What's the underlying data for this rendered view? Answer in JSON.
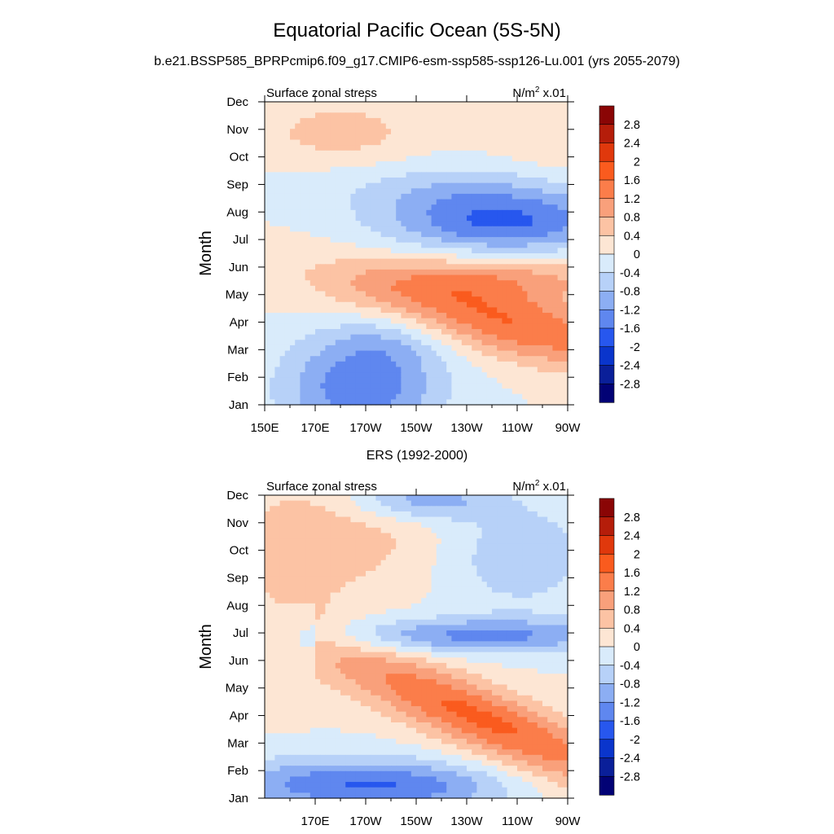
{
  "figure": {
    "title": "Equatorial Pacific Ocean (5S-5N)",
    "top_subtitle": "b.e21.BSSP585_BPRPcmip6.f09_g17.CMIP6-esm-ssp585-ssp126-Lu.001 (yrs 2055-2079)",
    "bottom_subtitle": "ERS (1992-2000)"
  },
  "colorbar": {
    "labels": [
      "2.8",
      "2.4",
      "2",
      "1.6",
      "1.2",
      "0.8",
      "0.4",
      "0",
      "-0.4",
      "-0.8",
      "-1.2",
      "-1.6",
      "-2",
      "-2.4",
      "-2.8"
    ],
    "colors": [
      "#8a0505",
      "#b51d0a",
      "#e0380c",
      "#fa5b1e",
      "#fb7d4a",
      "#f9a07b",
      "#fcc3a4",
      "#fde6d4",
      "#d9ebfb",
      "#b7d1f8",
      "#8caef3",
      "#5f87ef",
      "#2757ee",
      "#0a35cc",
      "#0a1f99",
      "#020275"
    ]
  },
  "chart_data": [
    {
      "type": "heatmap",
      "name": "model",
      "left_label": "Surface zonal stress",
      "right_label": "N/m",
      "right_label_sup": "2",
      "right_label_tail": " x.01",
      "ylabel": "Month",
      "y_categories": [
        "Jan",
        "Feb",
        "Mar",
        "Apr",
        "May",
        "Jun",
        "Jul",
        "Aug",
        "Sep",
        "Oct",
        "Nov",
        "Dec"
      ],
      "x_tick_labels": [
        "150E",
        "170E",
        "170W",
        "150W",
        "130W",
        "110W",
        "90W"
      ],
      "x_tick_lons": [
        150,
        170,
        190,
        210,
        230,
        250,
        270
      ],
      "xlim": [
        150,
        270
      ],
      "ylim": [
        1,
        12
      ],
      "contour_levels": [
        -2.8,
        -2.4,
        -2.0,
        -1.6,
        -1.2,
        -0.8,
        -0.4,
        0,
        0.4,
        0.8,
        1.2,
        1.6,
        2.0,
        2.4,
        2.8
      ],
      "features": [
        {
          "lon": 188,
          "month": 1.6,
          "amp": -1.5,
          "sx": 22,
          "sm": 1.3
        },
        {
          "lon": 200,
          "month": 3.4,
          "amp": -0.5,
          "sx": 18,
          "sm": 0.8
        },
        {
          "lon": 245,
          "month": 5.6,
          "amp": 0.9,
          "sx": 35,
          "sm": 0.6
        },
        {
          "lon": 245,
          "month": 7.6,
          "amp": -1.6,
          "sx": 32,
          "sm": 0.8
        },
        {
          "lon": 225,
          "month": 8.8,
          "amp": -0.6,
          "sx": 35,
          "sm": 0.7
        },
        {
          "lon": 180,
          "month": 10.9,
          "amp": 0.6,
          "sx": 22,
          "sm": 0.8
        },
        {
          "lon": 265,
          "month": 10.6,
          "amp": 0.3,
          "sx": 18,
          "sm": 1.0
        }
      ],
      "band": {
        "lon0": 150,
        "month0": 6.0,
        "lon1": 270,
        "month1": 3.5,
        "amp": 1.6,
        "width": 0.9,
        "peak_lon": 245,
        "spread": 45
      }
    },
    {
      "type": "heatmap",
      "name": "observed",
      "left_label": "Surface zonal stress",
      "right_label": "N/m",
      "right_label_sup": "2",
      "right_label_tail": " x.01",
      "ylabel": "Month",
      "y_categories": [
        "Jan",
        "Feb",
        "Mar",
        "Apr",
        "May",
        "Jun",
        "Jul",
        "Aug",
        "Sep",
        "Oct",
        "Nov",
        "Dec"
      ],
      "x_tick_labels": [
        "170E",
        "170W",
        "150W",
        "130W",
        "110W",
        "90W"
      ],
      "x_tick_lons": [
        170,
        190,
        210,
        230,
        250,
        270
      ],
      "xlim": [
        150,
        270
      ],
      "ylim": [
        1,
        12
      ],
      "contour_levels": [
        -2.8,
        -2.4,
        -2.0,
        -1.6,
        -1.2,
        -0.8,
        -0.4,
        0,
        0.4,
        0.8,
        1.2,
        1.6,
        2.0,
        2.4,
        2.8
      ],
      "features": [
        {
          "lon": 175,
          "month": 1.5,
          "amp": -1.3,
          "sx": 32,
          "sm": 0.7
        },
        {
          "lon": 215,
          "month": 1.4,
          "amp": -0.8,
          "sx": 25,
          "sm": 0.6
        },
        {
          "lon": 235,
          "month": 6.9,
          "amp": -1.3,
          "sx": 40,
          "sm": 0.45
        },
        {
          "lon": 212,
          "month": 11.8,
          "amp": -1.1,
          "sx": 20,
          "sm": 0.5
        },
        {
          "lon": 250,
          "month": 9.8,
          "amp": -0.7,
          "sx": 22,
          "sm": 1.4
        },
        {
          "lon": 185,
          "month": 10.5,
          "amp": 0.55,
          "sx": 28,
          "sm": 1.5
        },
        {
          "lon": 160,
          "month": 9.0,
          "amp": 0.35,
          "sx": 15,
          "sm": 2.5
        }
      ],
      "band": {
        "lon0": 180,
        "month0": 6.0,
        "lon1": 270,
        "month1": 2.6,
        "amp": 1.7,
        "width": 0.9,
        "peak_lon": 235,
        "spread": 45
      }
    }
  ]
}
